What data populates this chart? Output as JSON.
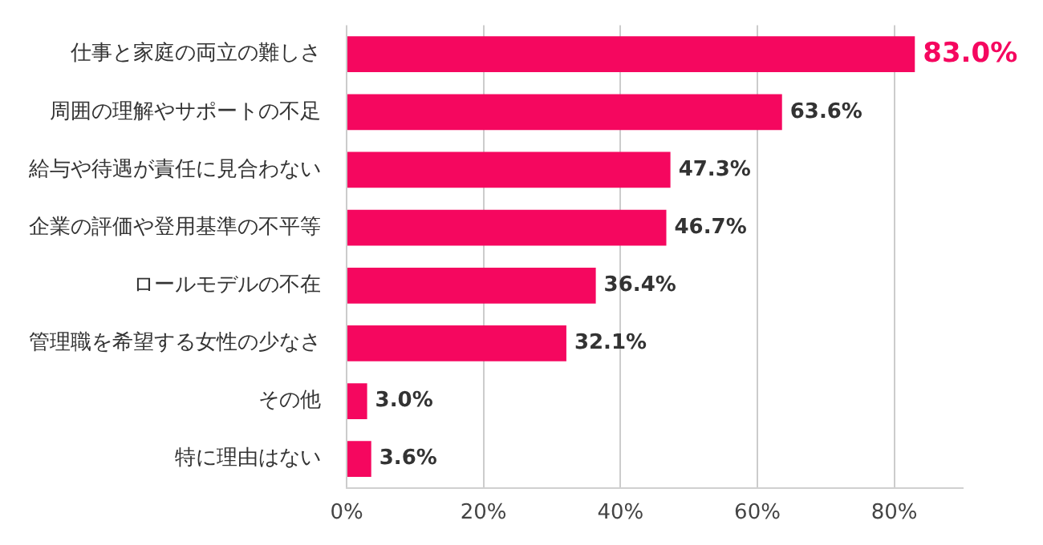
{
  "chart_data": {
    "type": "bar",
    "orientation": "horizontal",
    "categories": [
      "仕事と家庭の両立の難しさ",
      "周囲の理解やサポートの不足",
      "給与や待遇が責任に見合わない",
      "企業の評価や登用基準の不平等",
      "ロールモデルの不在",
      "管理職を希望する女性の少なさ",
      "その他",
      "特に理由はない"
    ],
    "values": [
      83.0,
      63.6,
      47.3,
      46.7,
      36.4,
      32.1,
      3.0,
      3.6
    ],
    "value_labels": [
      "83.0%",
      "63.6%",
      "47.3%",
      "46.7%",
      "36.4%",
      "32.1%",
      "3.0%",
      "3.6%"
    ],
    "color": "#f5075f",
    "xlim": [
      0,
      90
    ],
    "xticks": [
      {
        "value": 0,
        "label": "0%"
      },
      {
        "value": 20,
        "label": "20%"
      },
      {
        "value": 40,
        "label": "40%"
      },
      {
        "value": 60,
        "label": "60%"
      },
      {
        "value": 80,
        "label": "80%"
      }
    ],
    "grid": "x",
    "legend": false
  }
}
